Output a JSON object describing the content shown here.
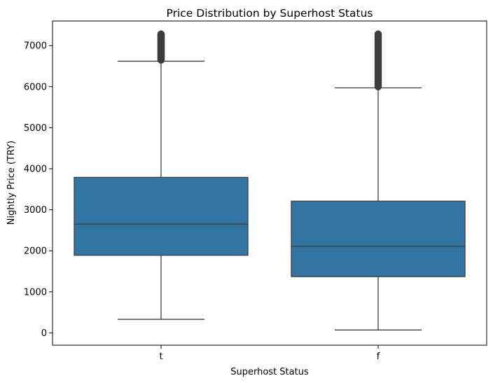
{
  "chart_data": {
    "type": "box",
    "title": "Price Distribution by Superhost Status",
    "xlabel": "Superhost Status",
    "ylabel": "Nightly Price (TRY)",
    "ylim": [
      -300,
      7600
    ],
    "yticks": [
      0,
      1000,
      2000,
      3000,
      4000,
      5000,
      6000,
      7000
    ],
    "grid": false,
    "box_color": "#3274a1",
    "line_color": "#3d3d3d",
    "categories": [
      "t",
      "f"
    ],
    "boxes": [
      {
        "category": "t",
        "whisker_low": 330,
        "q1": 1890,
        "median": 2650,
        "q3": 3790,
        "whisker_high": 6620,
        "outliers_range": [
          6650,
          7280
        ]
      },
      {
        "category": "f",
        "whisker_low": 70,
        "q1": 1370,
        "median": 2110,
        "q3": 3210,
        "whisker_high": 5970,
        "outliers_range": [
          6000,
          7280
        ]
      }
    ]
  }
}
